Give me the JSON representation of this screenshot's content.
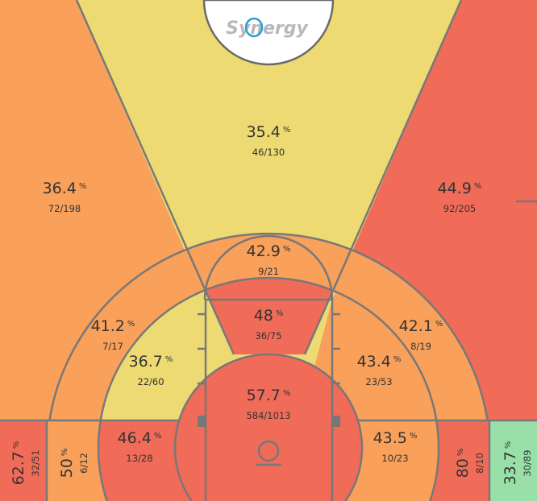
{
  "logo": {
    "text": "Synergy"
  },
  "colors": {
    "yellow": "#EDDA72",
    "orange": "#F9A05A",
    "red": "#F06B58",
    "green": "#98E0A8",
    "line": "#787878"
  },
  "chart_data": {
    "type": "heatmap",
    "percent_sign": "%",
    "zones": [
      {
        "pct": "35.4",
        "shots": "46/130",
        "color": "yellow"
      },
      {
        "pct": "36.4",
        "shots": "72/198",
        "color": "orange"
      },
      {
        "pct": "44.9",
        "shots": "92/205",
        "color": "red"
      },
      {
        "pct": "42.9",
        "shots": "9/21",
        "color": "orange"
      },
      {
        "pct": "48",
        "shots": "36/75",
        "color": "red"
      },
      {
        "pct": "41.2",
        "shots": "7/17",
        "color": "orange"
      },
      {
        "pct": "42.1",
        "shots": "8/19",
        "color": "orange"
      },
      {
        "pct": "36.7",
        "shots": "22/60",
        "color": "yellow"
      },
      {
        "pct": "43.4",
        "shots": "23/53",
        "color": "orange"
      },
      {
        "pct": "57.7",
        "shots": "584/1013",
        "color": "red"
      },
      {
        "pct": "46.4",
        "shots": "13/28",
        "color": "red"
      },
      {
        "pct": "43.5",
        "shots": "10/23",
        "color": "orange"
      },
      {
        "pct": "62.7",
        "shots": "32/51",
        "color": "red"
      },
      {
        "pct": "50",
        "shots": "6/12",
        "color": "orange"
      },
      {
        "pct": "80",
        "shots": "8/10",
        "color": "red"
      },
      {
        "pct": "33.7",
        "shots": "30/89",
        "color": "green"
      }
    ]
  }
}
